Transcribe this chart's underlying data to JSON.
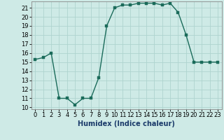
{
  "x": [
    0,
    1,
    2,
    3,
    4,
    5,
    6,
    7,
    8,
    9,
    10,
    11,
    12,
    13,
    14,
    15,
    16,
    17,
    18,
    19,
    20,
    21,
    22,
    23
  ],
  "y": [
    15.3,
    15.5,
    16.0,
    11.0,
    11.0,
    10.3,
    11.0,
    11.0,
    13.3,
    19.0,
    21.0,
    21.3,
    21.3,
    21.5,
    21.5,
    21.5,
    21.3,
    21.5,
    20.5,
    18.0,
    15.0,
    15.0,
    15.0,
    15.0
  ],
  "line_color": "#1a6b5a",
  "marker_color": "#1a6b5a",
  "bg_color": "#ceeae6",
  "grid_color": "#aed4cf",
  "xlabel": "Humidex (Indice chaleur)",
  "xlim": [
    -0.5,
    23.5
  ],
  "ylim": [
    9.8,
    21.7
  ],
  "yticks": [
    10,
    11,
    12,
    13,
    14,
    15,
    16,
    17,
    18,
    19,
    20,
    21
  ],
  "xticks": [
    0,
    1,
    2,
    3,
    4,
    5,
    6,
    7,
    8,
    9,
    10,
    11,
    12,
    13,
    14,
    15,
    16,
    17,
    18,
    19,
    20,
    21,
    22,
    23
  ],
  "linewidth": 1.0,
  "markersize": 2.5,
  "tick_fontsize": 6.0,
  "xlabel_fontsize": 7.0
}
